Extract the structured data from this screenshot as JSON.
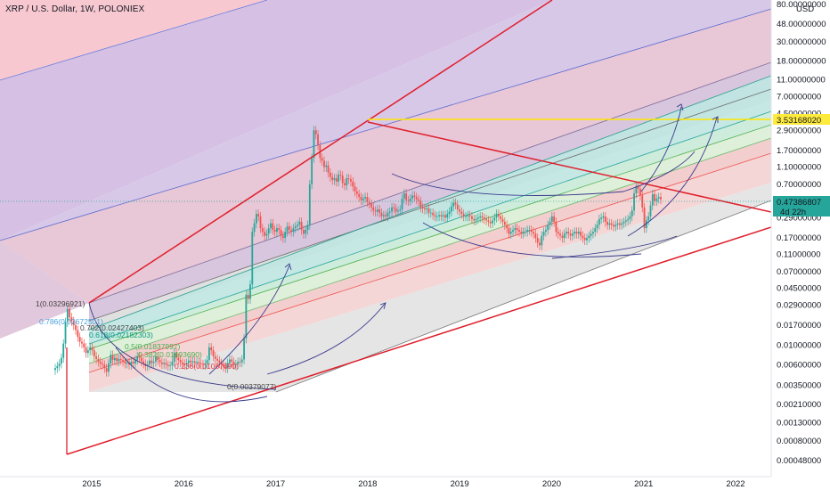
{
  "header": {
    "title": "XRP / U.S. Dollar, 1W, POLONIEX"
  },
  "chart_data": {
    "type": "line",
    "title": "XRP / U.S. Dollar, 1W, POLONIEX",
    "y_axis": {
      "scale": "log",
      "unit_label": "USD",
      "ticks": [
        "80.00000000",
        "48.00000000",
        "30.00000000",
        "18.00000000",
        "11.00000000",
        "7.00000000",
        "4.50000000",
        "2.90000000",
        "1.70000000",
        "1.10000000",
        "0.70000000",
        "0.29000000",
        "0.17000000",
        "0.11000000",
        "0.07000000",
        "0.04500000",
        "0.02900000",
        "0.01700000",
        "0.01000000",
        "0.00600000",
        "0.00350000",
        "0.00210000",
        "0.00130000",
        "0.00080000",
        "0.00048000"
      ]
    },
    "x_axis": {
      "ticks": [
        "2015",
        "2016",
        "2017",
        "2018",
        "2019",
        "2020",
        "2021",
        "2022"
      ]
    },
    "price_labels": [
      {
        "value": "3.53168020",
        "color": "#ffeb3b"
      },
      {
        "value": "0.47386807",
        "color": "#26a69a",
        "countdown": "4d 22h"
      }
    ],
    "fib_levels": [
      {
        "label": "1(0.03296921)",
        "color": "#555555"
      },
      {
        "label": "0.786(0.02672501)",
        "color": "#4ba3e0"
      },
      {
        "label": "0.702(0.02427403)",
        "color": "#555555"
      },
      {
        "label": "0.618(0.02182303)",
        "color": "#089981"
      },
      {
        "label": "0.5(0.01837997)",
        "color": "#4caf50"
      },
      {
        "label": "0.382(0.01493690)",
        "color": "#4caf50"
      },
      {
        "label": "0.236(0.01067690)",
        "color": "#f23645"
      },
      {
        "label": "0(0.00379077)",
        "color": "#555555"
      }
    ],
    "series": [
      {
        "values": [
          0.0055,
          0.0058,
          0.0062,
          0.0072,
          0.0105,
          0.0185,
          0.026,
          0.021,
          0.019,
          0.017,
          0.015,
          0.0125,
          0.011,
          0.0105,
          0.0095,
          0.0082,
          0.0088,
          0.0095,
          0.0088,
          0.0075,
          0.007,
          0.0065,
          0.0062,
          0.006,
          0.0055,
          0.005,
          0.0062,
          0.0078,
          0.0068,
          0.0072,
          0.0066,
          0.007,
          0.0068,
          0.0065,
          0.0062,
          0.0064,
          0.006,
          0.0065,
          0.0062,
          0.0068,
          0.0075,
          0.0072,
          0.0066,
          0.0062,
          0.0058,
          0.006,
          0.0067,
          0.0063,
          0.0065,
          0.0075,
          0.0068,
          0.0064,
          0.0061,
          0.0063,
          0.006,
          0.0058,
          0.0059,
          0.0065,
          0.0083,
          0.0072,
          0.0068,
          0.0064,
          0.0062,
          0.006,
          0.0063,
          0.0067,
          0.0064,
          0.0066,
          0.0063,
          0.0065,
          0.0063,
          0.0061,
          0.006,
          0.0062,
          0.0068,
          0.0095,
          0.0088,
          0.0075,
          0.007,
          0.0067,
          0.0063,
          0.006,
          0.0057,
          0.0055,
          0.0063,
          0.0069,
          0.0065,
          0.006,
          0.0061,
          0.0065,
          0.0064,
          0.0069,
          0.012,
          0.038,
          0.034,
          0.05,
          0.2,
          0.25,
          0.32,
          0.3,
          0.22,
          0.2,
          0.18,
          0.19,
          0.22,
          0.25,
          0.21,
          0.2,
          0.22,
          0.21,
          0.18,
          0.17,
          0.2,
          0.23,
          0.21,
          0.2,
          0.22,
          0.23,
          0.24,
          0.26,
          0.21,
          0.19,
          0.21,
          0.24,
          0.7,
          1.4,
          2.9,
          2.6,
          1.95,
          1.4,
          1.3,
          1.1,
          1.15,
          0.95,
          0.85,
          0.78,
          0.82,
          0.75,
          0.9,
          0.88,
          0.72,
          0.68,
          0.82,
          0.8,
          0.75,
          0.66,
          0.58,
          0.54,
          0.5,
          0.46,
          0.48,
          0.5,
          0.44,
          0.42,
          0.38,
          0.35,
          0.34,
          0.36,
          0.33,
          0.3,
          0.31,
          0.3,
          0.33,
          0.34,
          0.38,
          0.37,
          0.34,
          0.35,
          0.36,
          0.48,
          0.55,
          0.46,
          0.45,
          0.48,
          0.52,
          0.5,
          0.47,
          0.45,
          0.38,
          0.37,
          0.36,
          0.37,
          0.33,
          0.33,
          0.31,
          0.3,
          0.3,
          0.31,
          0.3,
          0.31,
          0.29,
          0.32,
          0.34,
          0.39,
          0.43,
          0.41,
          0.36,
          0.34,
          0.32,
          0.3,
          0.3,
          0.31,
          0.3,
          0.28,
          0.27,
          0.28,
          0.29,
          0.3,
          0.29,
          0.28,
          0.27,
          0.26,
          0.25,
          0.27,
          0.29,
          0.32,
          0.3,
          0.28,
          0.26,
          0.24,
          0.22,
          0.19,
          0.2,
          0.21,
          0.22,
          0.21,
          0.2,
          0.19,
          0.2,
          0.2,
          0.21,
          0.21,
          0.2,
          0.19,
          0.17,
          0.15,
          0.14,
          0.18,
          0.2,
          0.21,
          0.24,
          0.26,
          0.3,
          0.26,
          0.2,
          0.19,
          0.18,
          0.17,
          0.19,
          0.2,
          0.19,
          0.18,
          0.19,
          0.2,
          0.19,
          0.2,
          0.18,
          0.17,
          0.16,
          0.17,
          0.18,
          0.19,
          0.2,
          0.22,
          0.24,
          0.28,
          0.29,
          0.3,
          0.26,
          0.24,
          0.25,
          0.24,
          0.23,
          0.24,
          0.25,
          0.24,
          0.25,
          0.26,
          0.27,
          0.28,
          0.3,
          0.35,
          0.55,
          0.67,
          0.62,
          0.52,
          0.38,
          0.22,
          0.27,
          0.3,
          0.4,
          0.54,
          0.45,
          0.48,
          0.5,
          0.47
        ]
      }
    ]
  }
}
